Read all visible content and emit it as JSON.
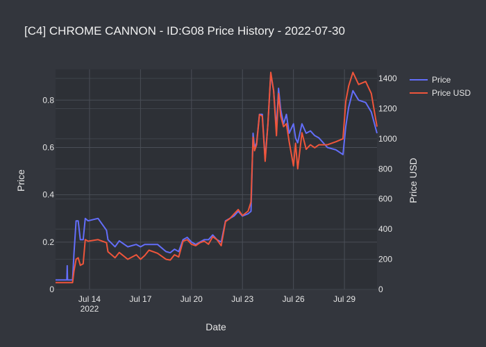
{
  "chart_data": {
    "type": "line",
    "title": "[C4] CHROME CANNON - ID:G08 Price History - 2022-07-30",
    "xlabel": "Date",
    "ylabel": "Price",
    "y2label": "Price USD",
    "xlim": [
      "2022-07-12",
      "2022-07-30T22:00"
    ],
    "ylim": [
      0,
      0.93
    ],
    "y2lim": [
      0,
      1460
    ],
    "x_ticks": [
      {
        "date": "2022-07-14",
        "label": "Jul 14",
        "sublabel": "2022"
      },
      {
        "date": "2022-07-17",
        "label": "Jul 17"
      },
      {
        "date": "2022-07-20",
        "label": "Jul 20"
      },
      {
        "date": "2022-07-23",
        "label": "Jul 23"
      },
      {
        "date": "2022-07-26",
        "label": "Jul 26"
      },
      {
        "date": "2022-07-29",
        "label": "Jul 29"
      }
    ],
    "y_ticks": [
      "0",
      "0.2",
      "0.4",
      "0.6",
      "0.8"
    ],
    "y_tick_values": [
      0,
      0.2,
      0.4,
      0.6,
      0.8
    ],
    "y2_ticks": [
      "0",
      "200",
      "400",
      "600",
      "800",
      "1000",
      "1200",
      "1400"
    ],
    "y2_tick_values": [
      0,
      200,
      400,
      600,
      800,
      1000,
      1200,
      1400
    ],
    "grid": true,
    "legend_position": "top-right",
    "series": [
      {
        "name": "Price",
        "axis": "y",
        "color": "#636efa",
        "points": [
          [
            "2022-07-12T00:00",
            0.04
          ],
          [
            "2022-07-12T16:00",
            0.04
          ],
          [
            "2022-07-12T16:30",
            0.1
          ],
          [
            "2022-07-12T17:00",
            0.04
          ],
          [
            "2022-07-13T00:00",
            0.04
          ],
          [
            "2022-07-13T02:00",
            0.15
          ],
          [
            "2022-07-13T05:00",
            0.29
          ],
          [
            "2022-07-13T08:00",
            0.29
          ],
          [
            "2022-07-13T11:00",
            0.21
          ],
          [
            "2022-07-13T15:00",
            0.21
          ],
          [
            "2022-07-13T18:00",
            0.3
          ],
          [
            "2022-07-13T22:00",
            0.29
          ],
          [
            "2022-07-14T12:00",
            0.3
          ],
          [
            "2022-07-15T00:00",
            0.25
          ],
          [
            "2022-07-15T02:00",
            0.21
          ],
          [
            "2022-07-15T12:00",
            0.18
          ],
          [
            "2022-07-15T18:00",
            0.205
          ],
          [
            "2022-07-16T06:00",
            0.18
          ],
          [
            "2022-07-16T18:00",
            0.19
          ],
          [
            "2022-07-17T00:00",
            0.18
          ],
          [
            "2022-07-17T06:00",
            0.19
          ],
          [
            "2022-07-17T12:00",
            0.19
          ],
          [
            "2022-07-18T00:00",
            0.19
          ],
          [
            "2022-07-18T12:00",
            0.16
          ],
          [
            "2022-07-18T18:00",
            0.155
          ],
          [
            "2022-07-19T00:00",
            0.17
          ],
          [
            "2022-07-19T06:00",
            0.16
          ],
          [
            "2022-07-19T12:00",
            0.21
          ],
          [
            "2022-07-19T18:00",
            0.22
          ],
          [
            "2022-07-20T00:00",
            0.2
          ],
          [
            "2022-07-20T06:00",
            0.19
          ],
          [
            "2022-07-20T12:00",
            0.2
          ],
          [
            "2022-07-20T18:00",
            0.21
          ],
          [
            "2022-07-21T00:00",
            0.21
          ],
          [
            "2022-07-21T06:00",
            0.23
          ],
          [
            "2022-07-21T12:00",
            0.21
          ],
          [
            "2022-07-21T18:00",
            0.2
          ],
          [
            "2022-07-22T00:00",
            0.29
          ],
          [
            "2022-07-22T06:00",
            0.3
          ],
          [
            "2022-07-22T12:00",
            0.31
          ],
          [
            "2022-07-22T18:00",
            0.33
          ],
          [
            "2022-07-23T00:00",
            0.31
          ],
          [
            "2022-07-23T08:00",
            0.32
          ],
          [
            "2022-07-23T12:00",
            0.33
          ],
          [
            "2022-07-23T15:00",
            0.66
          ],
          [
            "2022-07-23T17:00",
            0.6
          ],
          [
            "2022-07-23T20:00",
            0.62
          ],
          [
            "2022-07-24T00:00",
            0.74
          ],
          [
            "2022-07-24T04:00",
            0.74
          ],
          [
            "2022-07-24T08:00",
            0.55
          ],
          [
            "2022-07-24T12:00",
            0.7
          ],
          [
            "2022-07-24T16:00",
            0.91
          ],
          [
            "2022-07-24T20:00",
            0.84
          ],
          [
            "2022-07-25T00:00",
            0.68
          ],
          [
            "2022-07-25T03:00",
            0.85
          ],
          [
            "2022-07-25T06:00",
            0.76
          ],
          [
            "2022-07-25T10:00",
            0.7
          ],
          [
            "2022-07-25T14:00",
            0.74
          ],
          [
            "2022-07-25T18:00",
            0.66
          ],
          [
            "2022-07-26T00:00",
            0.7
          ],
          [
            "2022-07-26T03:00",
            0.64
          ],
          [
            "2022-07-26T06:00",
            0.62
          ],
          [
            "2022-07-26T12:00",
            0.7
          ],
          [
            "2022-07-26T18:00",
            0.66
          ],
          [
            "2022-07-27T00:00",
            0.67
          ],
          [
            "2022-07-27T06:00",
            0.65
          ],
          [
            "2022-07-27T12:00",
            0.64
          ],
          [
            "2022-07-28T00:00",
            0.6
          ],
          [
            "2022-07-28T12:00",
            0.59
          ],
          [
            "2022-07-28T22:00",
            0.57
          ],
          [
            "2022-07-29T02:00",
            0.69
          ],
          [
            "2022-07-29T06:00",
            0.77
          ],
          [
            "2022-07-29T12:00",
            0.84
          ],
          [
            "2022-07-29T20:00",
            0.8
          ],
          [
            "2022-07-30T06:00",
            0.79
          ],
          [
            "2022-07-30T14:00",
            0.75
          ],
          [
            "2022-07-30T22:00",
            0.66
          ]
        ]
      },
      {
        "name": "Price USD",
        "axis": "y2",
        "color": "#ef553b",
        "points": [
          [
            "2022-07-12T00:00",
            45
          ],
          [
            "2022-07-12T18:00",
            45
          ],
          [
            "2022-07-13T00:00",
            45
          ],
          [
            "2022-07-13T02:00",
            120
          ],
          [
            "2022-07-13T05:00",
            200
          ],
          [
            "2022-07-13T08:00",
            210
          ],
          [
            "2022-07-13T11:00",
            160
          ],
          [
            "2022-07-13T15:00",
            170
          ],
          [
            "2022-07-13T18:00",
            330
          ],
          [
            "2022-07-13T22:00",
            320
          ],
          [
            "2022-07-14T12:00",
            330
          ],
          [
            "2022-07-15T00:00",
            310
          ],
          [
            "2022-07-15T02:00",
            250
          ],
          [
            "2022-07-15T12:00",
            210
          ],
          [
            "2022-07-15T18:00",
            245
          ],
          [
            "2022-07-16T06:00",
            200
          ],
          [
            "2022-07-16T18:00",
            230
          ],
          [
            "2022-07-17T00:00",
            200
          ],
          [
            "2022-07-17T06:00",
            225
          ],
          [
            "2022-07-17T12:00",
            260
          ],
          [
            "2022-07-18T00:00",
            240
          ],
          [
            "2022-07-18T12:00",
            200
          ],
          [
            "2022-07-18T18:00",
            195
          ],
          [
            "2022-07-19T00:00",
            230
          ],
          [
            "2022-07-19T06:00",
            215
          ],
          [
            "2022-07-19T12:00",
            320
          ],
          [
            "2022-07-19T18:00",
            330
          ],
          [
            "2022-07-20T00:00",
            300
          ],
          [
            "2022-07-20T06:00",
            290
          ],
          [
            "2022-07-20T12:00",
            310
          ],
          [
            "2022-07-20T18:00",
            320
          ],
          [
            "2022-07-21T00:00",
            300
          ],
          [
            "2022-07-21T06:00",
            350
          ],
          [
            "2022-07-21T12:00",
            330
          ],
          [
            "2022-07-21T18:00",
            290
          ],
          [
            "2022-07-22T00:00",
            450
          ],
          [
            "2022-07-22T06:00",
            470
          ],
          [
            "2022-07-22T12:00",
            500
          ],
          [
            "2022-07-22T18:00",
            530
          ],
          [
            "2022-07-23T00:00",
            490
          ],
          [
            "2022-07-23T08:00",
            520
          ],
          [
            "2022-07-23T12:00",
            580
          ],
          [
            "2022-07-23T15:00",
            1010
          ],
          [
            "2022-07-23T17:00",
            920
          ],
          [
            "2022-07-23T20:00",
            960
          ],
          [
            "2022-07-24T00:00",
            1160
          ],
          [
            "2022-07-24T04:00",
            1150
          ],
          [
            "2022-07-24T08:00",
            850
          ],
          [
            "2022-07-24T12:00",
            1100
          ],
          [
            "2022-07-24T16:00",
            1440
          ],
          [
            "2022-07-24T20:00",
            1320
          ],
          [
            "2022-07-25T00:00",
            1020
          ],
          [
            "2022-07-25T03:00",
            1300
          ],
          [
            "2022-07-25T06:00",
            1150
          ],
          [
            "2022-07-25T10:00",
            1080
          ],
          [
            "2022-07-25T14:00",
            1100
          ],
          [
            "2022-07-25T18:00",
            980
          ],
          [
            "2022-07-26T00:00",
            820
          ],
          [
            "2022-07-26T03:00",
            970
          ],
          [
            "2022-07-26T06:00",
            800
          ],
          [
            "2022-07-26T12:00",
            1040
          ],
          [
            "2022-07-26T18:00",
            930
          ],
          [
            "2022-07-27T00:00",
            960
          ],
          [
            "2022-07-27T06:00",
            940
          ],
          [
            "2022-07-27T12:00",
            960
          ],
          [
            "2022-07-28T00:00",
            960
          ],
          [
            "2022-07-28T12:00",
            980
          ],
          [
            "2022-07-28T22:00",
            1000
          ],
          [
            "2022-07-29T02:00",
            1250
          ],
          [
            "2022-07-29T06:00",
            1350
          ],
          [
            "2022-07-29T12:00",
            1440
          ],
          [
            "2022-07-29T20:00",
            1360
          ],
          [
            "2022-07-30T06:00",
            1380
          ],
          [
            "2022-07-30T14:00",
            1300
          ],
          [
            "2022-07-30T22:00",
            1080
          ]
        ]
      }
    ]
  }
}
